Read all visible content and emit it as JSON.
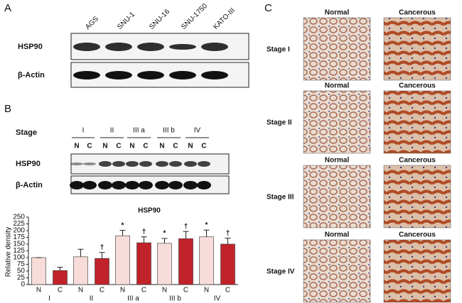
{
  "panel_labels": [
    "A",
    "B",
    "C"
  ],
  "panel_a": {
    "lanes": [
      "AGS",
      "SNU-1",
      "SNU-16",
      "SNU-1750",
      "KATO-III"
    ],
    "rows": [
      "HSP90",
      "β-Actin"
    ]
  },
  "panel_b": {
    "stage_header": "Stage",
    "stages": [
      "I",
      "II",
      "III a",
      "III b",
      "IV"
    ],
    "lane_labels": [
      "N",
      "C"
    ],
    "rows": [
      "HSP90",
      "β-Actin"
    ]
  },
  "chart_data": {
    "type": "bar",
    "title": "HSP90",
    "y_label": "Relative density",
    "categories": [
      "I",
      "II",
      "III a",
      "III b",
      "IV"
    ],
    "series": [
      {
        "name": "N",
        "color": "#f7dcd9",
        "values": [
          100,
          103,
          181,
          153,
          177
        ],
        "errors": [
          0,
          28,
          20,
          18,
          25
        ],
        "annotations": [
          null,
          null,
          "*",
          "*",
          "*"
        ]
      },
      {
        "name": "C",
        "color": "#c1232b",
        "values": [
          52,
          97,
          155,
          170,
          150
        ],
        "errors": [
          12,
          22,
          22,
          27,
          22
        ],
        "annotations": [
          null,
          "†",
          "†",
          "†",
          "†"
        ]
      }
    ],
    "ylim": [
      0,
      250
    ],
    "yticks": [
      0,
      25,
      50,
      75,
      100,
      125,
      150,
      175,
      200,
      225,
      250
    ]
  },
  "histology": {
    "columns": [
      "Normal",
      "Cancerous"
    ],
    "rows": [
      "Stage I",
      "Stage II",
      "Stage III",
      "Stage IV"
    ]
  }
}
